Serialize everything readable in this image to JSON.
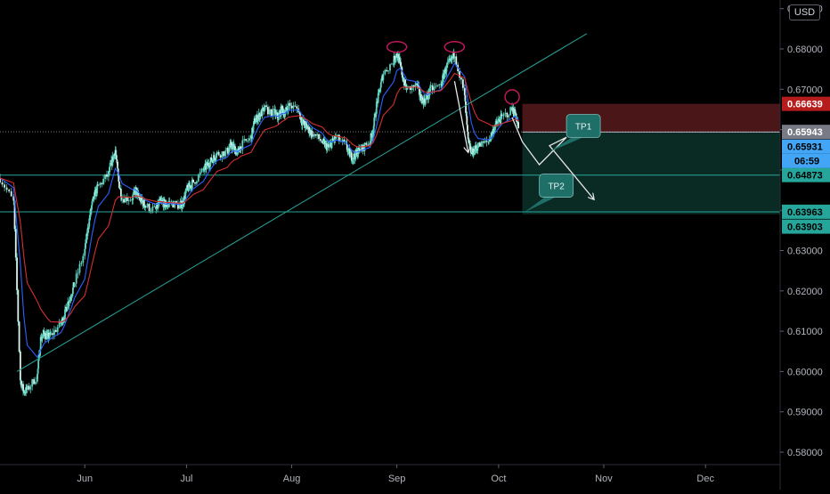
{
  "currency": "USD",
  "countdown": "06:59",
  "colors": {
    "background": "#000000",
    "axis_text": "#b2b5be",
    "candle": "#5fd3c0",
    "ema_fast": "#2962ff",
    "ema_slow": "#d32f2f",
    "trendline": "#26a69a",
    "support": "#26a69a",
    "stop_zone": "#4a1618",
    "profit_zone": "#0a2a24",
    "top_marker": "#c2185b",
    "path": "#e8e8e8",
    "tp_box": "#1f6f69"
  },
  "chart_data": {
    "type": "candlestick",
    "title": "",
    "xlabel": "",
    "ylabel": "",
    "x_tick_labels": [
      "Jun",
      "Jul",
      "Aug",
      "Sep",
      "Oct",
      "Nov",
      "Dec"
    ],
    "y_tick_labels": [
      "0.69000",
      "0.68000",
      "0.67000",
      "0.66000",
      "0.65000",
      "0.64000",
      "0.63000",
      "0.62000",
      "0.61000",
      "0.60000",
      "0.59000",
      "0.58000"
    ],
    "ylim": [
      0.5775,
      0.6905
    ],
    "xlim": [
      "2020-05-07",
      "2020-12-23"
    ],
    "grid": false,
    "price_tags": [
      {
        "value": 0.66639,
        "label": "0.66639",
        "color": "#b71c1c",
        "text_color": "#ffffff"
      },
      {
        "value": 0.65943,
        "label": "0.65943",
        "color": "#787b86",
        "text_color": "#ffffff"
      },
      {
        "value": 0.65931,
        "label": "0.65931",
        "color": "#42a5f5",
        "text_color": "#000000"
      },
      {
        "value": 0.64873,
        "label": "0.64873",
        "color": "#26a69a",
        "text_color": "#000000"
      },
      {
        "value": 0.63963,
        "label": "0.63963",
        "color": "#26a69a",
        "text_color": "#000000"
      },
      {
        "value": 0.63903,
        "label": "0.63903",
        "color": "#26a69a",
        "text_color": "#000000"
      }
    ],
    "trendline": {
      "start": [
        "2020-05-12",
        0.6
      ],
      "end": [
        "2020-10-27",
        0.6838
      ]
    },
    "support_levels": [
      0.6487,
      0.6396
    ],
    "stop_zone": {
      "from_date": "2020-10-08",
      "low": 0.6594,
      "high": 0.6664
    },
    "profit_zone": {
      "from_date": "2020-10-08",
      "low": 0.639,
      "high": 0.6594
    },
    "tops": [
      {
        "date": "2020-09-01",
        "value": 0.6805
      },
      {
        "date": "2020-09-18",
        "value": 0.6805
      },
      {
        "date": "2020-10-05",
        "value": 0.6681
      }
    ],
    "projection_path": [
      {
        "points": [
          [
            "2020-09-18",
            0.672
          ],
          [
            "2020-09-22",
            0.6545
          ]
        ]
      },
      {
        "points": [
          [
            "2020-10-05",
            0.663
          ],
          [
            "2020-10-08",
            0.657
          ],
          [
            "2020-10-13",
            0.6513
          ],
          [
            "2020-10-21",
            0.6581
          ],
          [
            "2020-10-16",
            0.656
          ],
          [
            "2020-10-29",
            0.6428
          ]
        ]
      }
    ],
    "tp_labels": [
      {
        "label": "TP1",
        "date": "2020-10-26",
        "value": 0.6609
      },
      {
        "label": "TP2",
        "date": "2020-10-18",
        "value": 0.6461
      }
    ],
    "series": [
      {
        "name": "",
        "type": "ema_fast"
      },
      {
        "name": "",
        "type": "ema_slow"
      }
    ],
    "close_series": [
      [
        "2020-05-07",
        0.648
      ],
      [
        "2020-05-11",
        0.642
      ],
      [
        "2020-05-13",
        0.598
      ],
      [
        "2020-05-14",
        0.595
      ],
      [
        "2020-05-15",
        0.5955
      ],
      [
        "2020-05-18",
        0.599
      ],
      [
        "2020-05-19",
        0.608
      ],
      [
        "2020-05-20",
        0.6095
      ],
      [
        "2020-05-21",
        0.6085
      ],
      [
        "2020-05-22",
        0.609
      ],
      [
        "2020-05-25",
        0.612
      ],
      [
        "2020-05-26",
        0.614
      ],
      [
        "2020-05-27",
        0.617
      ],
      [
        "2020-05-28",
        0.619
      ],
      [
        "2020-05-29",
        0.622
      ],
      [
        "2020-06-01",
        0.63
      ],
      [
        "2020-06-02",
        0.636
      ],
      [
        "2020-06-03",
        0.641
      ],
      [
        "2020-06-04",
        0.644
      ],
      [
        "2020-06-05",
        0.646
      ],
      [
        "2020-06-08",
        0.649
      ],
      [
        "2020-06-09",
        0.652
      ],
      [
        "2020-06-10",
        0.655
      ],
      [
        "2020-06-11",
        0.647
      ],
      [
        "2020-06-12",
        0.643
      ],
      [
        "2020-06-15",
        0.643
      ],
      [
        "2020-06-16",
        0.645
      ],
      [
        "2020-06-17",
        0.643
      ],
      [
        "2020-06-18",
        0.642
      ],
      [
        "2020-06-19",
        0.641
      ],
      [
        "2020-06-22",
        0.64
      ],
      [
        "2020-06-23",
        0.642
      ],
      [
        "2020-06-24",
        0.642
      ],
      [
        "2020-06-25",
        0.641
      ],
      [
        "2020-06-26",
        0.642
      ],
      [
        "2020-06-29",
        0.641
      ],
      [
        "2020-06-30",
        0.642
      ],
      [
        "2020-07-01",
        0.645
      ],
      [
        "2020-07-02",
        0.646
      ],
      [
        "2020-07-03",
        0.647
      ],
      [
        "2020-07-06",
        0.65
      ],
      [
        "2020-07-07",
        0.651
      ],
      [
        "2020-07-08",
        0.652
      ],
      [
        "2020-07-09",
        0.653
      ],
      [
        "2020-07-10",
        0.654
      ],
      [
        "2020-07-13",
        0.6545
      ],
      [
        "2020-07-14",
        0.656
      ],
      [
        "2020-07-15",
        0.6555
      ],
      [
        "2020-07-16",
        0.654
      ],
      [
        "2020-07-17",
        0.656
      ],
      [
        "2020-07-20",
        0.658
      ],
      [
        "2020-07-21",
        0.662
      ],
      [
        "2020-07-22",
        0.663
      ],
      [
        "2020-07-23",
        0.664
      ],
      [
        "2020-07-24",
        0.665
      ],
      [
        "2020-07-27",
        0.664
      ],
      [
        "2020-07-28",
        0.663
      ],
      [
        "2020-07-29",
        0.665
      ],
      [
        "2020-07-30",
        0.664
      ],
      [
        "2020-07-31",
        0.666
      ],
      [
        "2020-08-03",
        0.665
      ],
      [
        "2020-08-04",
        0.662
      ],
      [
        "2020-08-05",
        0.661
      ],
      [
        "2020-08-06",
        0.66
      ],
      [
        "2020-08-07",
        0.659
      ],
      [
        "2020-08-10",
        0.657
      ],
      [
        "2020-08-11",
        0.656
      ],
      [
        "2020-08-12",
        0.6555
      ],
      [
        "2020-08-13",
        0.657
      ],
      [
        "2020-08-14",
        0.658
      ],
      [
        "2020-08-17",
        0.656
      ],
      [
        "2020-08-18",
        0.654
      ],
      [
        "2020-08-19",
        0.653
      ],
      [
        "2020-08-20",
        0.654
      ],
      [
        "2020-08-21",
        0.655
      ],
      [
        "2020-08-24",
        0.657
      ],
      [
        "2020-08-25",
        0.66
      ],
      [
        "2020-08-26",
        0.666
      ],
      [
        "2020-08-27",
        0.67
      ],
      [
        "2020-08-28",
        0.674
      ],
      [
        "2020-08-31",
        0.677
      ],
      [
        "2020-09-01",
        0.679
      ],
      [
        "2020-09-02",
        0.676
      ],
      [
        "2020-09-03",
        0.672
      ],
      [
        "2020-09-04",
        0.67
      ],
      [
        "2020-09-07",
        0.671
      ],
      [
        "2020-09-08",
        0.668
      ],
      [
        "2020-09-09",
        0.667
      ],
      [
        "2020-09-10",
        0.668
      ],
      [
        "2020-09-11",
        0.67
      ],
      [
        "2020-09-14",
        0.671
      ],
      [
        "2020-09-15",
        0.674
      ],
      [
        "2020-09-16",
        0.676
      ],
      [
        "2020-09-17",
        0.677
      ],
      [
        "2020-09-18",
        0.679
      ],
      [
        "2020-09-21",
        0.668
      ],
      [
        "2020-09-22",
        0.657
      ],
      [
        "2020-09-23",
        0.654
      ],
      [
        "2020-09-24",
        0.655
      ],
      [
        "2020-09-25",
        0.656
      ],
      [
        "2020-09-28",
        0.657
      ],
      [
        "2020-09-29",
        0.659
      ],
      [
        "2020-09-30",
        0.661
      ],
      [
        "2020-10-01",
        0.662
      ],
      [
        "2020-10-02",
        0.663
      ],
      [
        "2020-10-05",
        0.665
      ],
      [
        "2020-10-06",
        0.664
      ],
      [
        "2020-10-07",
        0.66
      ]
    ]
  }
}
